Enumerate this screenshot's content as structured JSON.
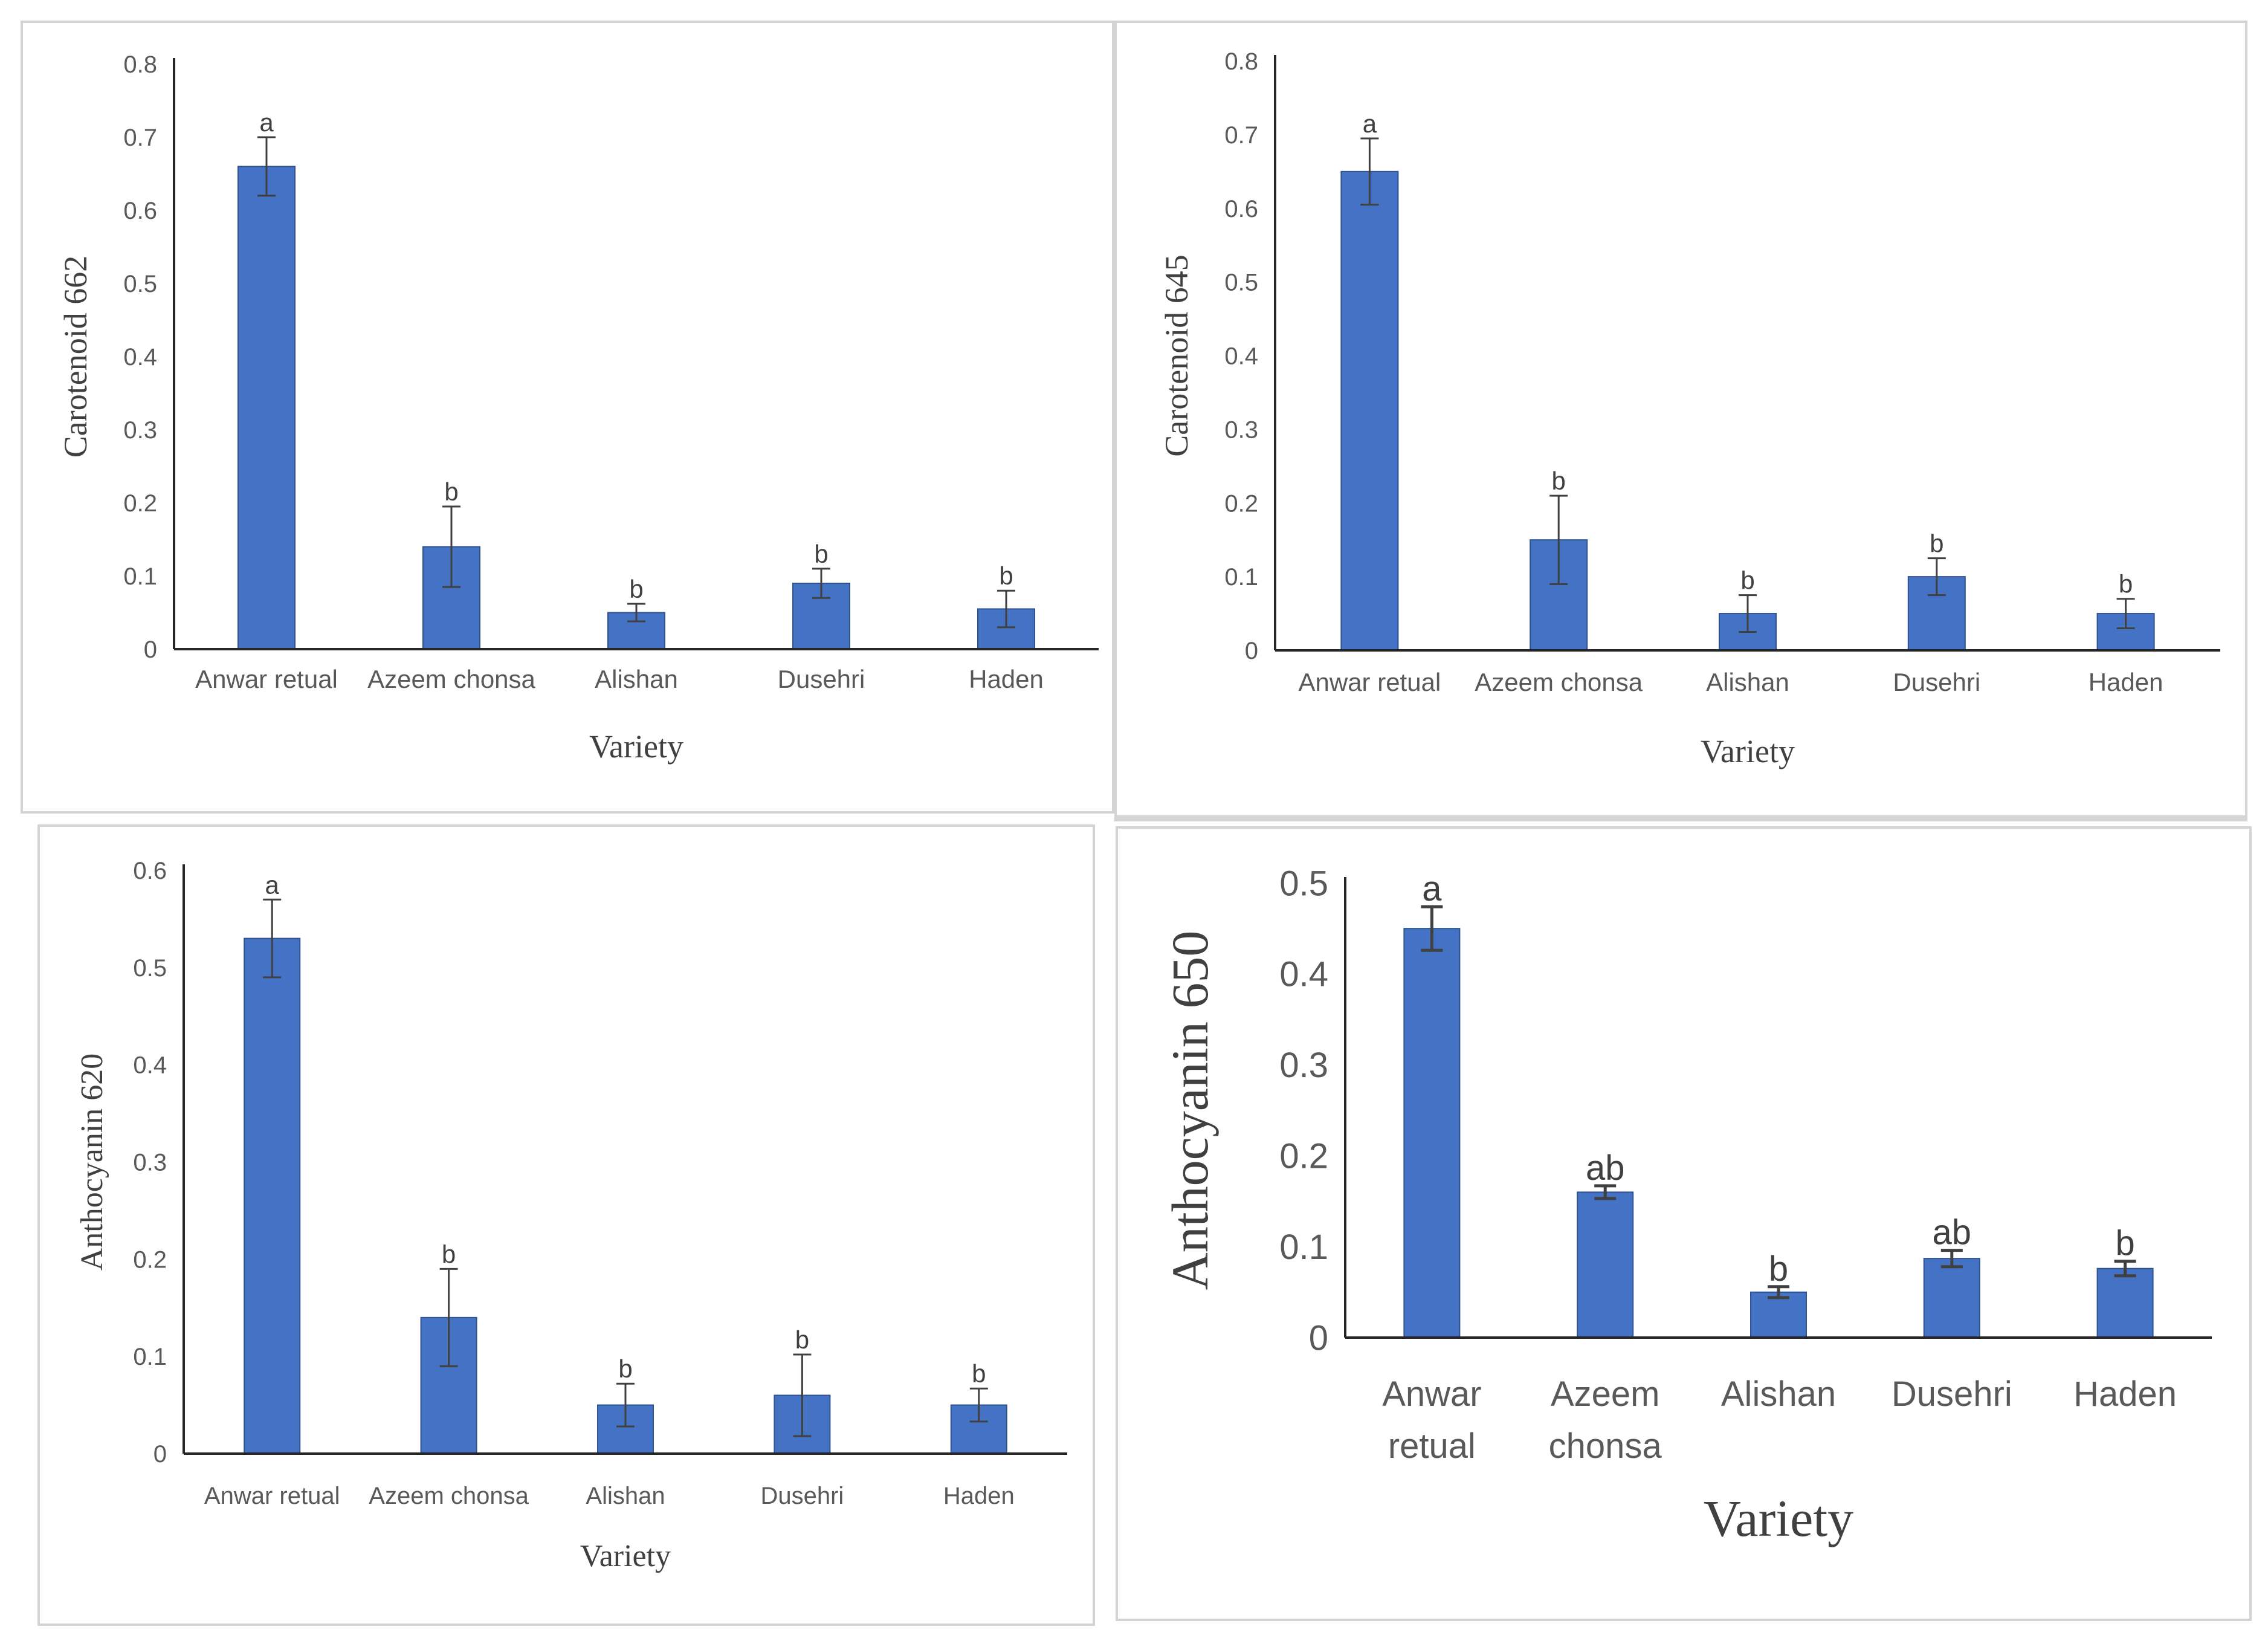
{
  "chart_data": [
    {
      "type": "bar",
      "categories": [
        "Anwar retual",
        "Azeem chonsa",
        "Alishan",
        "Dusehri",
        "Haden"
      ],
      "values": [
        0.66,
        0.14,
        0.05,
        0.09,
        0.055
      ],
      "errors": [
        0.04,
        0.055,
        0.012,
        0.02,
        0.025
      ],
      "significance_letters": [
        "a",
        "b",
        "b",
        "b",
        "b"
      ],
      "ylabel": "Carotenoid 662",
      "xlabel": "Variety",
      "ylim": [
        0,
        0.8
      ],
      "yticks": [
        "0",
        "0.1",
        "0.2",
        "0.3",
        "0.4",
        "0.5",
        "0.6",
        "0.7",
        "0.8"
      ],
      "grid": false
    },
    {
      "type": "bar",
      "categories": [
        "Anwar retual",
        "Azeem chonsa",
        "Alishan",
        "Dusehri",
        "Haden"
      ],
      "values": [
        0.65,
        0.15,
        0.05,
        0.1,
        0.05
      ],
      "errors": [
        0.045,
        0.06,
        0.025,
        0.025,
        0.02
      ],
      "significance_letters": [
        "a",
        "b",
        "b",
        "b",
        "b"
      ],
      "ylabel": "Carotenoid 645",
      "xlabel": "Variety",
      "ylim": [
        0,
        0.8
      ],
      "yticks": [
        "0",
        "0.1",
        "0.2",
        "0.3",
        "0.4",
        "0.5",
        "0.6",
        "0.7",
        "0.8"
      ],
      "grid": false
    },
    {
      "type": "bar",
      "categories": [
        "Anwar retual",
        "Azeem chonsa",
        "Alishan",
        "Dusehri",
        "Haden"
      ],
      "values": [
        0.53,
        0.14,
        0.05,
        0.06,
        0.05
      ],
      "errors": [
        0.04,
        0.05,
        0.022,
        0.042,
        0.017
      ],
      "significance_letters": [
        "a",
        "b",
        "b",
        "b",
        "b"
      ],
      "ylabel": "Anthocyanin 620",
      "xlabel": "Variety",
      "ylim": [
        0,
        0.6
      ],
      "yticks": [
        "0",
        "0.1",
        "0.2",
        "0.3",
        "0.4",
        "0.5",
        "0.6"
      ],
      "grid": false
    },
    {
      "type": "bar",
      "categories": [
        "Anwar\nretual",
        "Azeem\nchonsa",
        "Alishan",
        "Dusehri",
        "Haden"
      ],
      "values": [
        0.45,
        0.16,
        0.05,
        0.087,
        0.076
      ],
      "errors": [
        0.024,
        0.007,
        0.006,
        0.009,
        0.008
      ],
      "significance_letters": [
        "a",
        "ab",
        "b",
        "ab",
        "b"
      ],
      "ylabel": "Anthocyanin 650",
      "xlabel": "Variety",
      "ylim": [
        0,
        0.5
      ],
      "yticks": [
        "0",
        "0.1",
        "0.2",
        "0.3",
        "0.4",
        "0.5"
      ],
      "grid": false
    }
  ],
  "colors": {
    "bar_fill": "#4472c4",
    "bar_edge": "#2f528f",
    "axis": "#262626",
    "tick_text": "#595959",
    "title_text": "#404040",
    "panel_border": "#d4d4d4"
  }
}
